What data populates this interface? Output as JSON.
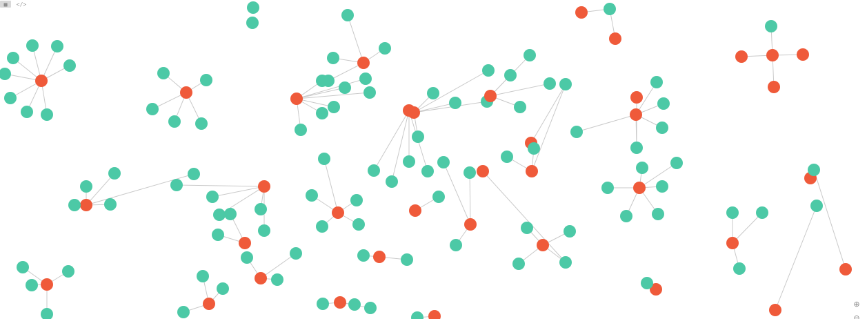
{
  "toolbar": {
    "grid_icon_label": "▦",
    "code_icon_label": "</>"
  },
  "zoom": {
    "zoom_in_label": "⊕",
    "zoom_out_label": "⊖"
  },
  "colors": {
    "resource_node": "#4cc9a6",
    "task_node": "#ef5a3a",
    "edge": "#c9c9c9",
    "label": "#555555"
  },
  "graph": {
    "node_types": [
      "resource",
      "task"
    ],
    "nodes": [
      {
        "id": "t1",
        "type": "task",
        "label": ""
      },
      {
        "id": "r1a",
        "type": "resource",
        "label": ""
      },
      {
        "id": "r1b",
        "type": "resource",
        "label": ""
      },
      {
        "id": "r1c",
        "type": "resource",
        "label": ""
      },
      {
        "id": "r1d",
        "type": "resource",
        "label": ""
      },
      {
        "id": "r1e",
        "type": "resource",
        "label": ""
      },
      {
        "id": "r1f",
        "type": "resource",
        "label": ""
      },
      {
        "id": "r1g",
        "type": "resource",
        "label": ""
      },
      {
        "id": "r1h",
        "type": "resource",
        "label": ""
      },
      {
        "id": "t2",
        "type": "task",
        "label": ""
      },
      {
        "id": "r2a",
        "type": "resource",
        "label": ""
      },
      {
        "id": "r2b",
        "type": "resource",
        "label": ""
      },
      {
        "id": "r2c",
        "type": "resource",
        "label": ""
      },
      {
        "id": "r2d",
        "type": "resource",
        "label": ""
      },
      {
        "id": "r2e",
        "type": "resource",
        "label": ""
      },
      {
        "id": "t3",
        "type": "task",
        "label": ""
      },
      {
        "id": "r3a",
        "type": "resource",
        "label": ""
      },
      {
        "id": "r3b",
        "type": "resource",
        "label": ""
      },
      {
        "id": "r3c",
        "type": "resource",
        "label": ""
      },
      {
        "id": "r3d",
        "type": "resource",
        "label": ""
      },
      {
        "id": "t4",
        "type": "task",
        "label": ""
      },
      {
        "id": "r4a",
        "type": "resource",
        "label": ""
      },
      {
        "id": "r4b",
        "type": "resource",
        "label": ""
      },
      {
        "id": "r4c",
        "type": "resource",
        "label": ""
      },
      {
        "id": "r4d",
        "type": "resource",
        "label": ""
      },
      {
        "id": "r4e",
        "type": "resource",
        "label": ""
      },
      {
        "id": "r4f",
        "type": "resource",
        "label": ""
      },
      {
        "id": "r4g",
        "type": "resource",
        "label": ""
      },
      {
        "id": "r5a",
        "type": "resource",
        "label": ""
      },
      {
        "id": "r5b",
        "type": "resource",
        "label": ""
      },
      {
        "id": "t6",
        "type": "task",
        "label": ""
      },
      {
        "id": "t6b",
        "type": "task",
        "label": ""
      },
      {
        "id": "r6a",
        "type": "resource",
        "label": ""
      },
      {
        "id": "t7",
        "type": "task",
        "label": ""
      },
      {
        "id": "t7a",
        "type": "task",
        "label": ""
      },
      {
        "id": "t7b",
        "type": "task",
        "label": ""
      },
      {
        "id": "t7c",
        "type": "task",
        "label": ""
      },
      {
        "id": "r7a",
        "type": "resource",
        "label": ""
      },
      {
        "id": "t8",
        "type": "task",
        "label": ""
      },
      {
        "id": "r8a",
        "type": "resource",
        "label": ""
      },
      {
        "id": "r8b",
        "type": "resource",
        "label": ""
      },
      {
        "id": "r8c",
        "type": "resource",
        "label": ""
      },
      {
        "id": "r8d",
        "type": "resource",
        "label": ""
      },
      {
        "id": "r8e",
        "type": "resource",
        "label": ""
      },
      {
        "id": "t9",
        "type": "task",
        "label": ""
      },
      {
        "id": "r9a",
        "type": "resource",
        "label": ""
      },
      {
        "id": "r9b",
        "type": "resource",
        "label": ""
      },
      {
        "id": "r9c",
        "type": "resource",
        "label": ""
      },
      {
        "id": "r9d",
        "type": "resource",
        "label": ""
      },
      {
        "id": "t10",
        "type": "task",
        "label": ""
      },
      {
        "id": "t10b",
        "type": "task",
        "label": ""
      },
      {
        "id": "r10a",
        "type": "resource",
        "label": ""
      },
      {
        "id": "r10b",
        "type": "resource",
        "label": ""
      },
      {
        "id": "r10c",
        "type": "resource",
        "label": ""
      },
      {
        "id": "r10d",
        "type": "resource",
        "label": ""
      },
      {
        "id": "r10e",
        "type": "resource",
        "label": ""
      },
      {
        "id": "t11",
        "type": "task",
        "label": ""
      },
      {
        "id": "r11a",
        "type": "resource",
        "label": ""
      },
      {
        "id": "r11b",
        "type": "resource",
        "label": ""
      },
      {
        "id": "r11c",
        "type": "resource",
        "label": ""
      },
      {
        "id": "r11d",
        "type": "resource",
        "label": ""
      },
      {
        "id": "r11e",
        "type": "resource",
        "label": ""
      },
      {
        "id": "t12",
        "type": "task",
        "label": ""
      },
      {
        "id": "r12a",
        "type": "resource",
        "label": ""
      },
      {
        "id": "r12b",
        "type": "resource",
        "label": ""
      },
      {
        "id": "r12c",
        "type": "resource",
        "label": ""
      },
      {
        "id": "r12d",
        "type": "resource",
        "label": ""
      },
      {
        "id": "t13",
        "type": "task",
        "label": ""
      },
      {
        "id": "r13a",
        "type": "resource",
        "label": ""
      },
      {
        "id": "r13b",
        "type": "resource",
        "label": ""
      },
      {
        "id": "r13c",
        "type": "resource",
        "label": ""
      },
      {
        "id": "t14",
        "type": "task",
        "label": ""
      },
      {
        "id": "t14b",
        "type": "task",
        "label": ""
      },
      {
        "id": "r14a",
        "type": "resource",
        "label": ""
      },
      {
        "id": "r14b",
        "type": "resource",
        "label": ""
      },
      {
        "id": "r14c",
        "type": "resource",
        "label": ""
      },
      {
        "id": "t15",
        "type": "task",
        "label": ""
      },
      {
        "id": "r15a",
        "type": "resource",
        "label": ""
      },
      {
        "id": "r15b",
        "type": "resource",
        "label": ""
      },
      {
        "id": "r15c",
        "type": "resource",
        "label": ""
      },
      {
        "id": "r15d",
        "type": "resource",
        "label": ""
      },
      {
        "id": "r15e",
        "type": "resource",
        "label": ""
      },
      {
        "id": "r15f",
        "type": "resource",
        "label": ""
      },
      {
        "id": "t16",
        "type": "task",
        "label": ""
      },
      {
        "id": "t16b",
        "type": "task",
        "label": ""
      },
      {
        "id": "t16c",
        "type": "task",
        "label": ""
      },
      {
        "id": "r16a",
        "type": "resource",
        "label": ""
      },
      {
        "id": "r16b",
        "type": "resource",
        "label": ""
      },
      {
        "id": "r16c",
        "type": "resource",
        "label": ""
      },
      {
        "id": "r16d",
        "type": "resource",
        "label": ""
      },
      {
        "id": "r16e",
        "type": "resource",
        "label": ""
      },
      {
        "id": "t17",
        "type": "task",
        "label": ""
      },
      {
        "id": "r17a",
        "type": "resource",
        "label": ""
      },
      {
        "id": "r17b",
        "type": "resource",
        "label": ""
      },
      {
        "id": "r17c",
        "type": "resource",
        "label": ""
      },
      {
        "id": "r17d",
        "type": "resource",
        "label": ""
      },
      {
        "id": "r17e",
        "type": "resource",
        "label": ""
      },
      {
        "id": "t18",
        "type": "task",
        "label": ""
      },
      {
        "id": "r18a",
        "type": "resource",
        "label": ""
      },
      {
        "id": "r18b",
        "type": "resource",
        "label": ""
      },
      {
        "id": "r18c",
        "type": "resource",
        "label": ""
      },
      {
        "id": "r18d",
        "type": "resource",
        "label": ""
      },
      {
        "id": "r18e",
        "type": "resource",
        "label": ""
      },
      {
        "id": "t19",
        "type": "task",
        "label": ""
      },
      {
        "id": "r19a",
        "type": "resource",
        "label": ""
      },
      {
        "id": "r19b",
        "type": "resource",
        "label": ""
      },
      {
        "id": "t20",
        "type": "task",
        "label": ""
      },
      {
        "id": "r20a",
        "type": "resource",
        "label": ""
      },
      {
        "id": "r20b",
        "type": "resource",
        "label": ""
      },
      {
        "id": "t21",
        "type": "task",
        "label": ""
      },
      {
        "id": "r21a",
        "type": "resource",
        "label": ""
      },
      {
        "id": "r21b",
        "type": "resource",
        "label": ""
      },
      {
        "id": "r21c",
        "type": "resource",
        "label": ""
      },
      {
        "id": "t22",
        "type": "task",
        "label": ""
      },
      {
        "id": "r22a",
        "type": "resource",
        "label": ""
      },
      {
        "id": "r22b",
        "type": "resource",
        "label": ""
      },
      {
        "id": "r22c",
        "type": "resource",
        "label": ""
      },
      {
        "id": "r22d",
        "type": "resource",
        "label": ""
      },
      {
        "id": "t23",
        "type": "task",
        "label": ""
      },
      {
        "id": "r23a",
        "type": "resource",
        "label": ""
      },
      {
        "id": "r23b",
        "type": "resource",
        "label": ""
      },
      {
        "id": "r23c",
        "type": "resource",
        "label": ""
      },
      {
        "id": "t24",
        "type": "task",
        "label": ""
      },
      {
        "id": "r24a",
        "type": "resource",
        "label": ""
      },
      {
        "id": "r24b",
        "type": "resource",
        "label": ""
      },
      {
        "id": "r24c",
        "type": "resource",
        "label": ""
      },
      {
        "id": "t25",
        "type": "task",
        "label": ""
      },
      {
        "id": "r25a",
        "type": "resource",
        "label": ""
      },
      {
        "id": "r25b",
        "type": "resource",
        "label": ""
      },
      {
        "id": "r25c",
        "type": "resource",
        "label": ""
      },
      {
        "id": "t26",
        "type": "task",
        "label": ""
      },
      {
        "id": "t26b",
        "type": "task",
        "label": ""
      },
      {
        "id": "t26c",
        "type": "task",
        "label": ""
      },
      {
        "id": "r26a",
        "type": "resource",
        "label": ""
      },
      {
        "id": "r26b",
        "type": "resource",
        "label": ""
      },
      {
        "id": "t27",
        "type": "task",
        "label": ""
      },
      {
        "id": "t27b",
        "type": "task",
        "label": ""
      },
      {
        "id": "r27a",
        "type": "resource",
        "label": ""
      },
      {
        "id": "r27b",
        "type": "resource",
        "label": ""
      }
    ],
    "edges": [
      [
        "t1",
        "r1a"
      ],
      [
        "t1",
        "r1b"
      ],
      [
        "t1",
        "r1c"
      ],
      [
        "t1",
        "r1d"
      ],
      [
        "t1",
        "r1e"
      ],
      [
        "t1",
        "r1f"
      ],
      [
        "t1",
        "r1g"
      ],
      [
        "t1",
        "r1h"
      ],
      [
        "t2",
        "r2a"
      ],
      [
        "t2",
        "r2b"
      ],
      [
        "t2",
        "r2c"
      ],
      [
        "t2",
        "r2d"
      ],
      [
        "t2",
        "r2e"
      ],
      [
        "t3",
        "r3a"
      ],
      [
        "t3",
        "r3b"
      ],
      [
        "t3",
        "r3c"
      ],
      [
        "t3",
        "r3d"
      ],
      [
        "t4",
        "r4a"
      ],
      [
        "t4",
        "r4b"
      ],
      [
        "t4",
        "r4c"
      ],
      [
        "t4",
        "r4d"
      ],
      [
        "t4",
        "r4e"
      ],
      [
        "t4",
        "r4f"
      ],
      [
        "t4",
        "r4g"
      ],
      [
        "t6",
        "r6a"
      ],
      [
        "t6b",
        "r6a"
      ],
      [
        "t7",
        "t7a"
      ],
      [
        "t7",
        "t7b"
      ],
      [
        "t7",
        "t7c"
      ],
      [
        "t7",
        "r7a"
      ],
      [
        "t8",
        "r8a"
      ],
      [
        "t8",
        "r8b"
      ],
      [
        "t8",
        "r8c"
      ],
      [
        "t8",
        "r8d"
      ],
      [
        "t8",
        "r8e"
      ],
      [
        "t9",
        "r9a"
      ],
      [
        "t9",
        "r9b"
      ],
      [
        "t9",
        "r9c"
      ],
      [
        "t9",
        "r9d"
      ],
      [
        "t10",
        "r10a"
      ],
      [
        "t10",
        "r10b"
      ],
      [
        "t10",
        "r10c"
      ],
      [
        "t10",
        "r10d"
      ],
      [
        "t10",
        "r10e"
      ],
      [
        "t10b",
        "r10d"
      ],
      [
        "t11",
        "r11a"
      ],
      [
        "t11",
        "r11b"
      ],
      [
        "t11",
        "r11c"
      ],
      [
        "t11",
        "r11d"
      ],
      [
        "t11",
        "r11e"
      ],
      [
        "t12",
        "r12a"
      ],
      [
        "t12",
        "r12b"
      ],
      [
        "t12",
        "r12c"
      ],
      [
        "t12",
        "r12d"
      ],
      [
        "t13",
        "r13a"
      ],
      [
        "t13",
        "r13b"
      ],
      [
        "t13",
        "r13c"
      ],
      [
        "t14",
        "r14a"
      ],
      [
        "t14",
        "r14b"
      ],
      [
        "t14",
        "r14c"
      ],
      [
        "t14b",
        "r14c"
      ],
      [
        "t15",
        "r15a"
      ],
      [
        "t15",
        "r15b"
      ],
      [
        "t15",
        "r15c"
      ],
      [
        "t15",
        "r15d"
      ],
      [
        "t15",
        "r15e"
      ],
      [
        "t15",
        "r15f"
      ],
      [
        "t16",
        "r16a"
      ],
      [
        "t16",
        "r16b"
      ],
      [
        "t16",
        "r16c"
      ],
      [
        "t16b",
        "r16d"
      ],
      [
        "t16c",
        "r16e"
      ],
      [
        "t16",
        "r16d"
      ],
      [
        "t17",
        "r17a"
      ],
      [
        "t17",
        "r17b"
      ],
      [
        "t17",
        "r17c"
      ],
      [
        "t17",
        "r17d"
      ],
      [
        "t17",
        "r17e"
      ],
      [
        "t18",
        "r18a"
      ],
      [
        "t18",
        "r18b"
      ],
      [
        "t18",
        "r18c"
      ],
      [
        "t18",
        "r18d"
      ],
      [
        "t18",
        "r18e"
      ],
      [
        "t19",
        "r19a"
      ],
      [
        "t19",
        "r19b"
      ],
      [
        "t20",
        "r20a"
      ],
      [
        "t20",
        "r20b"
      ],
      [
        "t21",
        "r21a"
      ],
      [
        "t21",
        "r21b"
      ],
      [
        "t21",
        "r21c"
      ],
      [
        "t22",
        "r22a"
      ],
      [
        "t22",
        "r22b"
      ],
      [
        "t22",
        "r22c"
      ],
      [
        "t22",
        "r22d"
      ],
      [
        "t23",
        "r23a"
      ],
      [
        "t23",
        "r23b"
      ],
      [
        "t23",
        "r23c"
      ],
      [
        "t24",
        "r24a"
      ],
      [
        "t24",
        "r24b"
      ],
      [
        "t24",
        "r24c"
      ],
      [
        "t25",
        "r25a"
      ],
      [
        "t25",
        "r25b"
      ],
      [
        "t25",
        "r25c"
      ],
      [
        "t26",
        "r26a"
      ],
      [
        "t26b",
        "r26a"
      ],
      [
        "t26c",
        "r26b"
      ],
      [
        "t27",
        "r27a"
      ],
      [
        "t27b",
        "r27b"
      ]
    ]
  }
}
